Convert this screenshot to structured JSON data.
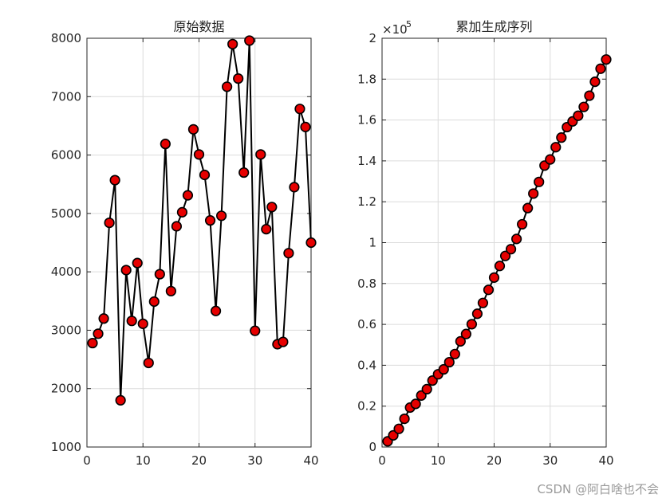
{
  "colors": {
    "marker_fill": "#e60000",
    "marker_edge": "#000000",
    "line": "#000000",
    "grid": "#dcdcdc",
    "axis": "#262626",
    "watermark": "#9a9a9a"
  },
  "watermark": "CSDN @阿白啥也不会",
  "chart_data": [
    {
      "type": "line",
      "title": "原始数据",
      "xlabel": "",
      "ylabel": "",
      "xlim": [
        0,
        40
      ],
      "ylim": [
        1000,
        8000
      ],
      "xticks": [
        0,
        10,
        20,
        30,
        40
      ],
      "yticks": [
        1000,
        2000,
        3000,
        4000,
        5000,
        6000,
        7000,
        8000
      ],
      "xtick_labels": [
        "0",
        "10",
        "20",
        "30",
        "40"
      ],
      "ytick_labels": [
        "1000",
        "2000",
        "3000",
        "4000",
        "5000",
        "6000",
        "7000",
        "8000"
      ],
      "grid": true,
      "markers": "circle",
      "x": [
        1,
        2,
        3,
        4,
        5,
        6,
        7,
        8,
        9,
        10,
        11,
        12,
        13,
        14,
        15,
        16,
        17,
        18,
        19,
        20,
        21,
        22,
        23,
        24,
        25,
        26,
        27,
        28,
        29,
        30,
        31,
        32,
        33,
        34,
        35,
        36,
        37,
        38,
        39,
        40
      ],
      "values": [
        2780,
        2940,
        3200,
        4840,
        5570,
        1800,
        4030,
        3160,
        4150,
        3110,
        2440,
        3490,
        3960,
        6190,
        3670,
        4780,
        5020,
        5310,
        6440,
        6010,
        5660,
        4880,
        3330,
        4960,
        7170,
        7900,
        7310,
        5700,
        7960,
        2990,
        6010,
        4730,
        5110,
        2760,
        2800,
        4320,
        5450,
        6790,
        6480,
        4500
      ]
    },
    {
      "type": "line",
      "title": "累加生成序列",
      "xlabel": "",
      "ylabel": "",
      "xlim": [
        0,
        40
      ],
      "ylim": [
        0,
        2.0
      ],
      "y_multiplier": "×10",
      "y_exponent": "5",
      "xticks": [
        0,
        10,
        20,
        30,
        40
      ],
      "yticks": [
        0,
        0.2,
        0.4,
        0.6,
        0.8,
        1.0,
        1.2,
        1.4,
        1.6,
        1.8,
        2.0
      ],
      "xtick_labels": [
        "0",
        "10",
        "20",
        "30",
        "40"
      ],
      "ytick_labels": [
        "0",
        "0.2",
        "0.4",
        "0.6",
        "0.8",
        "1",
        "1.2",
        "1.4",
        "1.6",
        "1.8",
        "2"
      ],
      "grid": true,
      "markers": "circle",
      "x": [
        1,
        2,
        3,
        4,
        5,
        6,
        7,
        8,
        9,
        10,
        11,
        12,
        13,
        14,
        15,
        16,
        17,
        18,
        19,
        20,
        21,
        22,
        23,
        24,
        25,
        26,
        27,
        28,
        29,
        30,
        31,
        32,
        33,
        34,
        35,
        36,
        37,
        38,
        39,
        40
      ],
      "values": [
        0.028,
        0.057,
        0.089,
        0.138,
        0.193,
        0.211,
        0.252,
        0.283,
        0.325,
        0.356,
        0.38,
        0.415,
        0.455,
        0.517,
        0.553,
        0.601,
        0.652,
        0.705,
        0.769,
        0.829,
        0.886,
        0.935,
        0.968,
        1.018,
        1.09,
        1.169,
        1.24,
        1.297,
        1.377,
        1.407,
        1.467,
        1.514,
        1.565,
        1.593,
        1.621,
        1.664,
        1.719,
        1.787,
        1.851,
        1.896
      ]
    }
  ]
}
